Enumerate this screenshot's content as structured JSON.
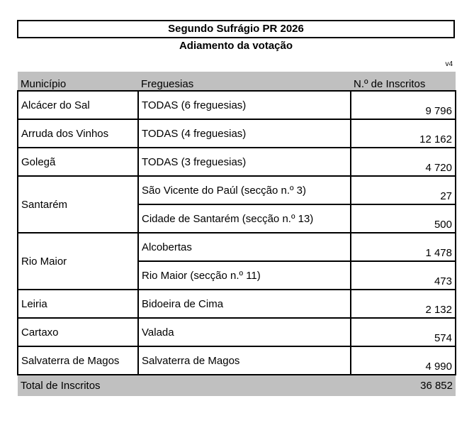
{
  "title": "Segundo Sufrágio PR 2026",
  "subtitle": "Adiamento da votação",
  "version": "v4",
  "headers": {
    "municipio": "Município",
    "freguesias": "Freguesias",
    "inscritos": "N.º de Inscritos"
  },
  "rows": [
    {
      "municipio": "Alcácer do Sal",
      "items": [
        {
          "freguesia": "TODAS (6 freguesias)",
          "inscritos": "9 796"
        }
      ]
    },
    {
      "municipio": "Arruda dos Vinhos",
      "items": [
        {
          "freguesia": "TODAS (4 freguesias)",
          "inscritos": "12 162"
        }
      ]
    },
    {
      "municipio": "Golegã",
      "items": [
        {
          "freguesia": "TODAS (3 freguesias)",
          "inscritos": "4 720"
        }
      ]
    },
    {
      "municipio": "Santarém",
      "items": [
        {
          "freguesia": "São Vicente do Paúl (secção n.º 3)",
          "inscritos": "27"
        },
        {
          "freguesia": "Cidade de Santarém (secção n.º 13)",
          "inscritos": "500"
        }
      ]
    },
    {
      "municipio": "Rio Maior",
      "items": [
        {
          "freguesia": "Alcobertas",
          "inscritos": "1 478"
        },
        {
          "freguesia": "Rio Maior (secção n.º 11)",
          "inscritos": "473"
        }
      ]
    },
    {
      "municipio": "Leiria",
      "items": [
        {
          "freguesia": "Bidoeira de Cima",
          "inscritos": "2 132"
        }
      ]
    },
    {
      "municipio": "Cartaxo",
      "items": [
        {
          "freguesia": "Valada",
          "inscritos": "574"
        }
      ]
    },
    {
      "municipio": "Salvaterra de Magos",
      "items": [
        {
          "freguesia": "Salvaterra de Magos",
          "inscritos": "4 990"
        }
      ]
    }
  ],
  "total": {
    "label": "Total de Inscritos",
    "value": "36 852"
  }
}
